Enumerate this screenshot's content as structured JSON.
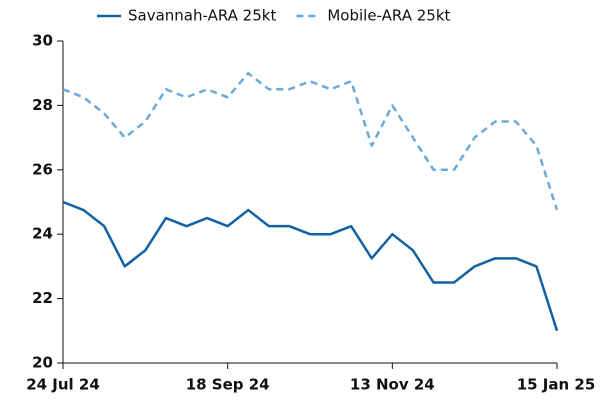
{
  "chart_data": {
    "type": "line",
    "categories": [
      "24 Jul 24",
      null,
      null,
      null,
      null,
      null,
      null,
      null,
      "18 Sep 24",
      null,
      null,
      null,
      null,
      null,
      null,
      null,
      "13 Nov 24",
      null,
      null,
      null,
      null,
      null,
      null,
      null,
      "15 Jan 25"
    ],
    "series": [
      {
        "name": "Savannah-ARA 25kt",
        "color": "#1262a3",
        "dashed": false,
        "values": [
          25.0,
          24.75,
          24.25,
          23.0,
          23.5,
          24.5,
          24.25,
          24.5,
          24.25,
          24.75,
          24.25,
          24.25,
          24.0,
          24.0,
          24.25,
          23.25,
          24.0,
          23.5,
          22.5,
          22.5,
          23.0,
          23.25,
          23.25,
          23.0,
          21.0
        ]
      },
      {
        "name": "Mobile-ARA 25kt",
        "color": "#6aaad9",
        "dashed": true,
        "values": [
          28.5,
          28.25,
          27.75,
          27.0,
          27.5,
          28.5,
          28.25,
          28.5,
          28.25,
          29.0,
          28.5,
          28.5,
          28.75,
          28.5,
          28.75,
          26.75,
          28.0,
          27.0,
          26.0,
          26.0,
          27.0,
          27.5,
          27.5,
          26.75,
          24.75
        ]
      }
    ],
    "ylim": [
      20,
      30
    ],
    "yticks": [
      20,
      22,
      24,
      26,
      28,
      30
    ],
    "grid": false,
    "legend": "top"
  }
}
